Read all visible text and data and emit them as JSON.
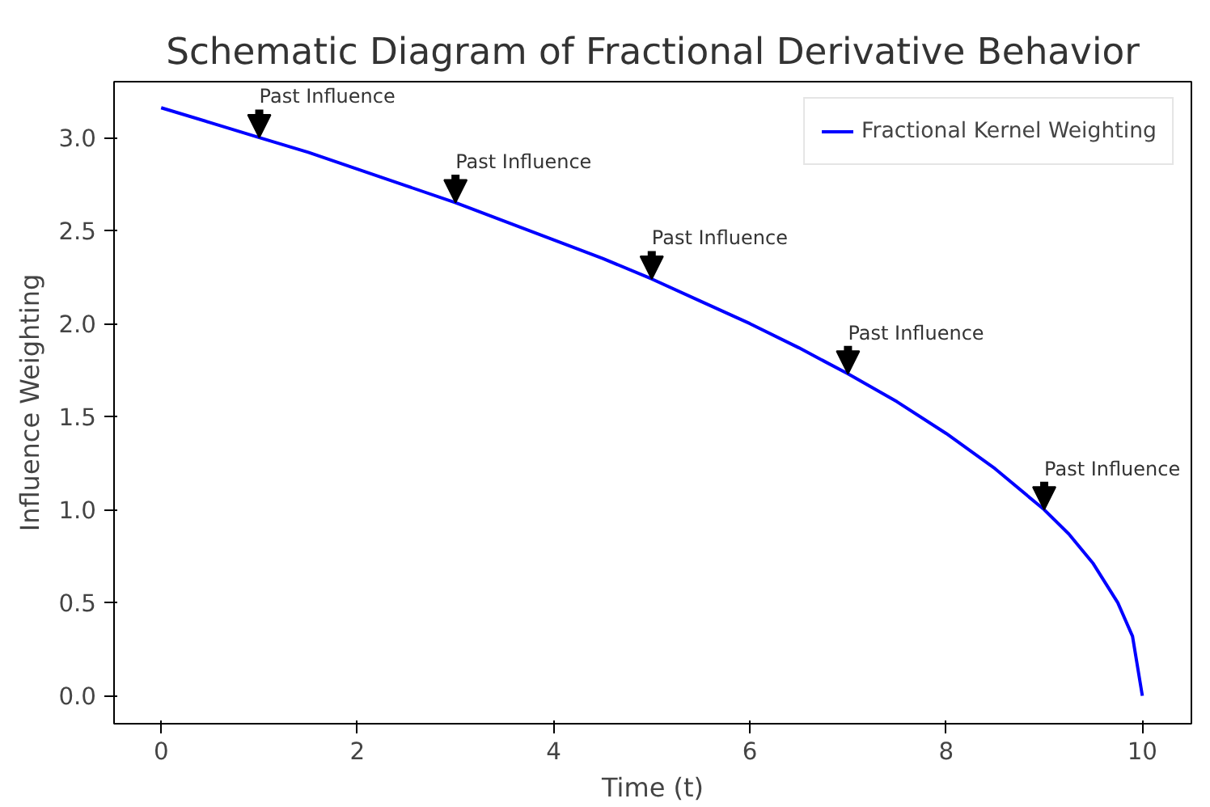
{
  "chart_data": {
    "type": "line",
    "title": "Schematic Diagram of Fractional Derivative Behavior",
    "xlabel": "Time (t)",
    "ylabel": "Influence Weighting",
    "x": [
      0,
      0.5,
      1,
      1.5,
      2,
      2.5,
      3,
      3.5,
      4,
      4.5,
      5,
      5.5,
      6,
      6.5,
      7,
      7.5,
      8,
      8.5,
      9,
      9.25,
      9.5,
      9.75,
      9.9,
      10
    ],
    "series": [
      {
        "name": "Fractional Kernel Weighting",
        "color": "#0000ff",
        "values": [
          3.16,
          3.08,
          3.0,
          2.92,
          2.83,
          2.74,
          2.65,
          2.55,
          2.45,
          2.35,
          2.24,
          2.12,
          2.0,
          1.87,
          1.73,
          1.58,
          1.41,
          1.22,
          1.0,
          0.87,
          0.71,
          0.5,
          0.32,
          0.0
        ]
      }
    ],
    "xlim": [
      -0.48,
      10.5
    ],
    "ylim": [
      -0.15,
      3.3
    ],
    "xticks": [
      0,
      2,
      4,
      6,
      8,
      10
    ],
    "yticks": [
      {
        "value": 0,
        "label": "0.0"
      },
      0.5,
      {
        "value": 1,
        "label": "1.0"
      },
      1.5,
      {
        "value": 2,
        "label": "2.0"
      },
      2.5,
      {
        "value": 3,
        "label": "3.0"
      }
    ],
    "annotations": [
      {
        "text": "Past Influence",
        "x": 1,
        "y": 3.0
      },
      {
        "text": "Past Influence",
        "x": 3,
        "y": 2.65
      },
      {
        "text": "Past Influence",
        "x": 5,
        "y": 2.24
      },
      {
        "text": "Past Influence",
        "x": 7,
        "y": 1.73
      },
      {
        "text": "Past Influence",
        "x": 9,
        "y": 1.0
      }
    ],
    "legend": "top right",
    "grid": false,
    "line_style": "solid",
    "marker": "none"
  }
}
